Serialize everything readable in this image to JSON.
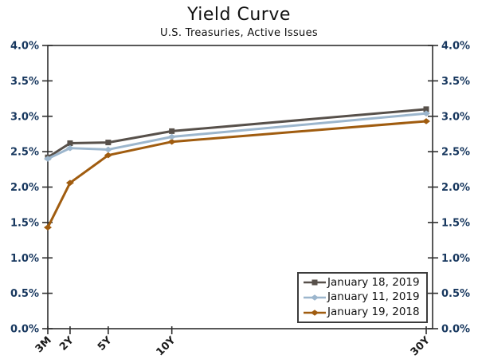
{
  "title": "Yield Curve",
  "subtitle": "U.S. Treasuries, Active Issues",
  "chart_data": {
    "type": "line",
    "categories": [
      "3M",
      "2Y",
      "5Y",
      "10Y",
      "30Y"
    ],
    "x_years": [
      0.25,
      2,
      5,
      10,
      30
    ],
    "series": [
      {
        "name": "January 18, 2019",
        "color": "#57504a",
        "marker": "square",
        "values": [
          2.42,
          2.62,
          2.63,
          2.79,
          3.1
        ]
      },
      {
        "name": "January 11, 2019",
        "color": "#9cb6cd",
        "marker": "diamond",
        "values": [
          2.4,
          2.55,
          2.53,
          2.71,
          3.04
        ]
      },
      {
        "name": "January 19, 2018",
        "color": "#a05c0f",
        "marker": "diamond",
        "values": [
          1.43,
          2.06,
          2.45,
          2.64,
          2.93
        ]
      }
    ],
    "ylim": [
      0.0,
      4.0
    ],
    "ytick_step": 0.5,
    "ytick_labels": [
      "0.0%",
      "0.5%",
      "1.0%",
      "1.5%",
      "2.0%",
      "2.5%",
      "3.0%",
      "3.5%",
      "4.0%"
    ],
    "y_axis_sides": "both",
    "grid": false,
    "legend_position": "bottom-right",
    "colors": {
      "axis": "#2e2e2e",
      "y_tick_label": "#17375e",
      "x_tick_label": "#1a1a1a",
      "title": "#111111"
    }
  }
}
